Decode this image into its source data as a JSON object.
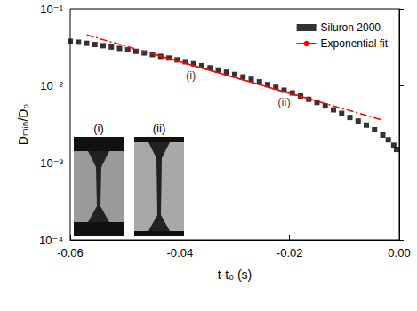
{
  "chart_data": {
    "type": "scatter",
    "x_label": "t-t₀ (s)",
    "y_label": "Dₘᵢₙ/D₀",
    "log": "y",
    "grid": false,
    "legend": "upper right",
    "xlim": [
      -0.06,
      0
    ],
    "xticks": [
      -0.06,
      -0.04,
      -0.02,
      {
        "value": 0,
        "label": "0.00"
      }
    ],
    "ylim": [
      0.0001,
      0.1
    ],
    "yticks": [
      {
        "value": 0.0001,
        "label": "10⁻⁴"
      },
      {
        "value": 0.001,
        "label": "10⁻³"
      },
      {
        "value": 0.01,
        "label": "10⁻²"
      },
      {
        "value": 0.1,
        "label": "10⁻¹"
      }
    ],
    "series": [
      {
        "name": "Siluron 2000",
        "type": "scatter",
        "marker": "square",
        "color": "#000000",
        "x": [
          -0.06,
          -0.0585,
          -0.057,
          -0.0555,
          -0.054,
          -0.0525,
          -0.051,
          -0.0495,
          -0.048,
          -0.0465,
          -0.045,
          -0.0435,
          -0.042,
          -0.0405,
          -0.039,
          -0.0375,
          -0.036,
          -0.0345,
          -0.033,
          -0.0315,
          -0.03,
          -0.0285,
          -0.027,
          -0.0255,
          -0.024,
          -0.0225,
          -0.021,
          -0.0195,
          -0.018,
          -0.0165,
          -0.015,
          -0.0135,
          -0.012,
          -0.0105,
          -0.009,
          -0.0075,
          -0.006,
          -0.0045,
          -0.003,
          -0.002,
          -0.001,
          -0.0005
        ],
        "values": [
          0.038,
          0.037,
          0.0358,
          0.0345,
          0.0333,
          0.032,
          0.0307,
          0.0294,
          0.0281,
          0.0268,
          0.0255,
          0.0242,
          0.023,
          0.0218,
          0.0206,
          0.0194,
          0.0183,
          0.0172,
          0.0161,
          0.0151,
          0.0141,
          0.0131,
          0.0122,
          0.0113,
          0.0104,
          0.0096,
          0.0088,
          0.0081,
          0.0074,
          0.0067,
          0.0061,
          0.0055,
          0.0049,
          0.0044,
          0.0039,
          0.0035,
          0.0031,
          0.0027,
          0.0023,
          0.002,
          0.0017,
          0.0015
        ]
      },
      {
        "name": "Exponential fit",
        "type": "line",
        "line_style": "solid",
        "color": "#ff0000",
        "x": [
          -0.045,
          -0.015
        ],
        "values": [
          0.0261,
          0.00634
        ]
      },
      {
        "type": "line",
        "line_style": "dashdot",
        "color": "#ff0000",
        "x": [
          -0.057,
          -0.003
        ],
        "values": [
          0.046,
          0.0036
        ]
      }
    ],
    "annotations": [
      {
        "text": "(i)",
        "x": -0.038,
        "y": 0.014
      },
      {
        "text": "(ii)",
        "x": -0.021,
        "y": 0.0062
      }
    ],
    "insets": [
      {
        "label": "(i)"
      },
      {
        "label": "(ii)"
      }
    ]
  }
}
